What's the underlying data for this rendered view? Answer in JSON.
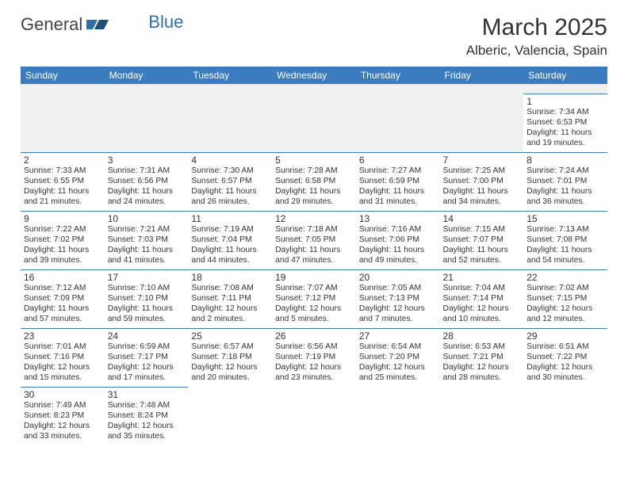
{
  "brand": {
    "left": "General",
    "right": "Blue"
  },
  "title": "March 2025",
  "location": "Alberic, Valencia, Spain",
  "colors": {
    "header_bg": "#3b7bbf",
    "header_fg": "#ffffff",
    "cell_border": "#3b7bbf",
    "blank_bg": "#f0f0f0",
    "brand_accent": "#2f6fa8",
    "text": "#333333",
    "page_bg": "#ffffff"
  },
  "typography": {
    "month_title_size": 30,
    "location_size": 17,
    "weekday_size": 12,
    "cell_size": 10.3,
    "daynum_size": 12,
    "font_family": "Arial"
  },
  "layout": {
    "cols": 7,
    "rows": 6,
    "col_width_pct": 14.28
  },
  "weekdays": [
    "Sunday",
    "Monday",
    "Tuesday",
    "Wednesday",
    "Thursday",
    "Friday",
    "Saturday"
  ],
  "weeks": [
    [
      null,
      null,
      null,
      null,
      null,
      null,
      {
        "d": "1",
        "sr": "Sunrise: 7:34 AM",
        "ss": "Sunset: 6:53 PM",
        "dl1": "Daylight: 11 hours",
        "dl2": "and 19 minutes."
      }
    ],
    [
      {
        "d": "2",
        "sr": "Sunrise: 7:33 AM",
        "ss": "Sunset: 6:55 PM",
        "dl1": "Daylight: 11 hours",
        "dl2": "and 21 minutes."
      },
      {
        "d": "3",
        "sr": "Sunrise: 7:31 AM",
        "ss": "Sunset: 6:56 PM",
        "dl1": "Daylight: 11 hours",
        "dl2": "and 24 minutes."
      },
      {
        "d": "4",
        "sr": "Sunrise: 7:30 AM",
        "ss": "Sunset: 6:57 PM",
        "dl1": "Daylight: 11 hours",
        "dl2": "and 26 minutes."
      },
      {
        "d": "5",
        "sr": "Sunrise: 7:28 AM",
        "ss": "Sunset: 6:58 PM",
        "dl1": "Daylight: 11 hours",
        "dl2": "and 29 minutes."
      },
      {
        "d": "6",
        "sr": "Sunrise: 7:27 AM",
        "ss": "Sunset: 6:59 PM",
        "dl1": "Daylight: 11 hours",
        "dl2": "and 31 minutes."
      },
      {
        "d": "7",
        "sr": "Sunrise: 7:25 AM",
        "ss": "Sunset: 7:00 PM",
        "dl1": "Daylight: 11 hours",
        "dl2": "and 34 minutes."
      },
      {
        "d": "8",
        "sr": "Sunrise: 7:24 AM",
        "ss": "Sunset: 7:01 PM",
        "dl1": "Daylight: 11 hours",
        "dl2": "and 36 minutes."
      }
    ],
    [
      {
        "d": "9",
        "sr": "Sunrise: 7:22 AM",
        "ss": "Sunset: 7:02 PM",
        "dl1": "Daylight: 11 hours",
        "dl2": "and 39 minutes."
      },
      {
        "d": "10",
        "sr": "Sunrise: 7:21 AM",
        "ss": "Sunset: 7:03 PM",
        "dl1": "Daylight: 11 hours",
        "dl2": "and 41 minutes."
      },
      {
        "d": "11",
        "sr": "Sunrise: 7:19 AM",
        "ss": "Sunset: 7:04 PM",
        "dl1": "Daylight: 11 hours",
        "dl2": "and 44 minutes."
      },
      {
        "d": "12",
        "sr": "Sunrise: 7:18 AM",
        "ss": "Sunset: 7:05 PM",
        "dl1": "Daylight: 11 hours",
        "dl2": "and 47 minutes."
      },
      {
        "d": "13",
        "sr": "Sunrise: 7:16 AM",
        "ss": "Sunset: 7:06 PM",
        "dl1": "Daylight: 11 hours",
        "dl2": "and 49 minutes."
      },
      {
        "d": "14",
        "sr": "Sunrise: 7:15 AM",
        "ss": "Sunset: 7:07 PM",
        "dl1": "Daylight: 11 hours",
        "dl2": "and 52 minutes."
      },
      {
        "d": "15",
        "sr": "Sunrise: 7:13 AM",
        "ss": "Sunset: 7:08 PM",
        "dl1": "Daylight: 11 hours",
        "dl2": "and 54 minutes."
      }
    ],
    [
      {
        "d": "16",
        "sr": "Sunrise: 7:12 AM",
        "ss": "Sunset: 7:09 PM",
        "dl1": "Daylight: 11 hours",
        "dl2": "and 57 minutes."
      },
      {
        "d": "17",
        "sr": "Sunrise: 7:10 AM",
        "ss": "Sunset: 7:10 PM",
        "dl1": "Daylight: 11 hours",
        "dl2": "and 59 minutes."
      },
      {
        "d": "18",
        "sr": "Sunrise: 7:08 AM",
        "ss": "Sunset: 7:11 PM",
        "dl1": "Daylight: 12 hours",
        "dl2": "and 2 minutes."
      },
      {
        "d": "19",
        "sr": "Sunrise: 7:07 AM",
        "ss": "Sunset: 7:12 PM",
        "dl1": "Daylight: 12 hours",
        "dl2": "and 5 minutes."
      },
      {
        "d": "20",
        "sr": "Sunrise: 7:05 AM",
        "ss": "Sunset: 7:13 PM",
        "dl1": "Daylight: 12 hours",
        "dl2": "and 7 minutes."
      },
      {
        "d": "21",
        "sr": "Sunrise: 7:04 AM",
        "ss": "Sunset: 7:14 PM",
        "dl1": "Daylight: 12 hours",
        "dl2": "and 10 minutes."
      },
      {
        "d": "22",
        "sr": "Sunrise: 7:02 AM",
        "ss": "Sunset: 7:15 PM",
        "dl1": "Daylight: 12 hours",
        "dl2": "and 12 minutes."
      }
    ],
    [
      {
        "d": "23",
        "sr": "Sunrise: 7:01 AM",
        "ss": "Sunset: 7:16 PM",
        "dl1": "Daylight: 12 hours",
        "dl2": "and 15 minutes."
      },
      {
        "d": "24",
        "sr": "Sunrise: 6:59 AM",
        "ss": "Sunset: 7:17 PM",
        "dl1": "Daylight: 12 hours",
        "dl2": "and 17 minutes."
      },
      {
        "d": "25",
        "sr": "Sunrise: 6:57 AM",
        "ss": "Sunset: 7:18 PM",
        "dl1": "Daylight: 12 hours",
        "dl2": "and 20 minutes."
      },
      {
        "d": "26",
        "sr": "Sunrise: 6:56 AM",
        "ss": "Sunset: 7:19 PM",
        "dl1": "Daylight: 12 hours",
        "dl2": "and 23 minutes."
      },
      {
        "d": "27",
        "sr": "Sunrise: 6:54 AM",
        "ss": "Sunset: 7:20 PM",
        "dl1": "Daylight: 12 hours",
        "dl2": "and 25 minutes."
      },
      {
        "d": "28",
        "sr": "Sunrise: 6:53 AM",
        "ss": "Sunset: 7:21 PM",
        "dl1": "Daylight: 12 hours",
        "dl2": "and 28 minutes."
      },
      {
        "d": "29",
        "sr": "Sunrise: 6:51 AM",
        "ss": "Sunset: 7:22 PM",
        "dl1": "Daylight: 12 hours",
        "dl2": "and 30 minutes."
      }
    ],
    [
      {
        "d": "30",
        "sr": "Sunrise: 7:49 AM",
        "ss": "Sunset: 8:23 PM",
        "dl1": "Daylight: 12 hours",
        "dl2": "and 33 minutes."
      },
      {
        "d": "31",
        "sr": "Sunrise: 7:48 AM",
        "ss": "Sunset: 8:24 PM",
        "dl1": "Daylight: 12 hours",
        "dl2": "and 35 minutes."
      },
      null,
      null,
      null,
      null,
      null
    ]
  ]
}
